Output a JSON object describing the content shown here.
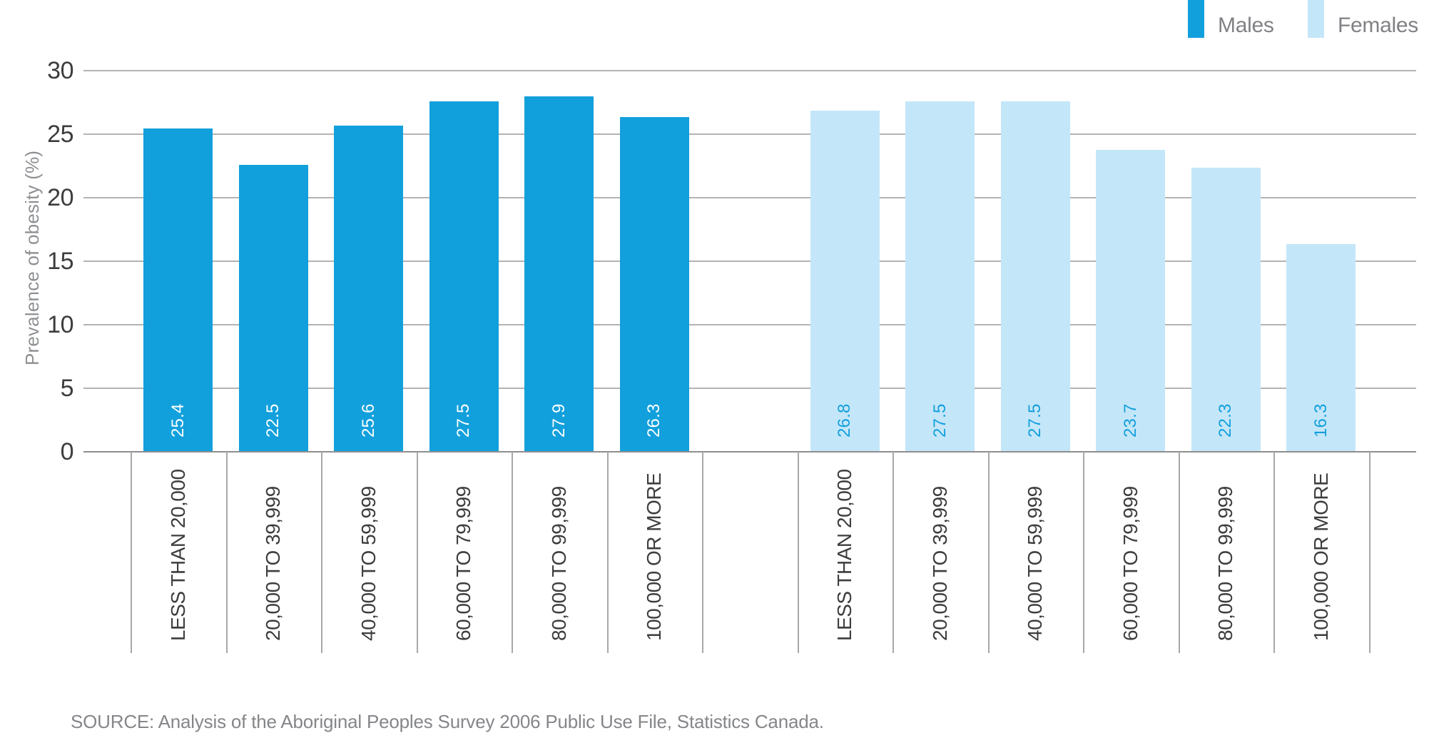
{
  "chart_data": {
    "type": "bar",
    "title": "",
    "xlabel": "",
    "ylabel": "Prevalence of obesity (%)",
    "ylim": [
      0,
      30
    ],
    "yticks": [
      0,
      5,
      10,
      15,
      20,
      25,
      30
    ],
    "grid": true,
    "legend_position": "top-right",
    "categories": [
      "LESS THAN 20,000",
      "20,000 TO 39,999",
      "40,000 TO 59,999",
      "60,000 TO 79,999",
      "80,000 TO 99,999",
      "100,000 OR MORE"
    ],
    "series": [
      {
        "name": "Males",
        "color": "#12A0DC",
        "value_label_color": "#FFFFFF",
        "values": [
          25.4,
          22.5,
          25.6,
          27.5,
          27.9,
          26.3
        ]
      },
      {
        "name": "Females",
        "color": "#C4E6F9",
        "value_label_color": "#12A0DC",
        "values": [
          26.8,
          27.5,
          27.5,
          23.7,
          22.3,
          16.3
        ]
      }
    ]
  },
  "colors": {
    "males_bar": "#12A0DC",
    "females_bar": "#C4E6F9",
    "gridline": "#b3b3b3",
    "axis_line": "#8e8e8e",
    "dark_text": "#3d3d3f",
    "muted_text": "#808184"
  },
  "source_note": "SOURCE: Analysis of the Aboriginal Peoples Survey 2006 Public Use File, Statistics Canada."
}
